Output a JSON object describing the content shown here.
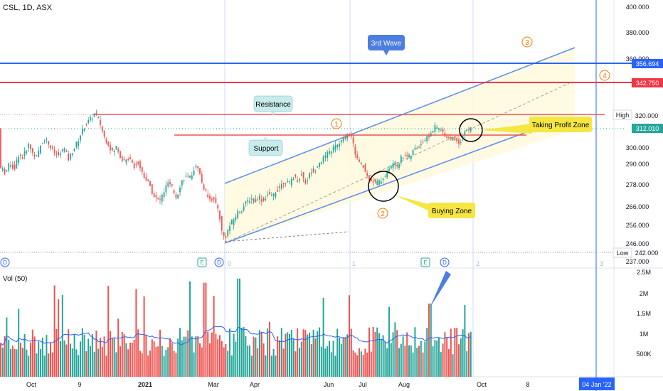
{
  "symbol_title": "CSL, 1D, ASX",
  "colors": {
    "up": "#26a69a",
    "down": "#ef5350",
    "ema": "#2962ff",
    "res_line": "#ef5350",
    "channel": "#5b8def",
    "h_blue": "#2962ff",
    "h_red": "#f23645",
    "wave": "#f57c00",
    "callout": "#f5e642",
    "wave_box": "#4c7de0",
    "teal_box": "#c8ecec"
  },
  "price_axis": {
    "ticks": [
      "400.000",
      "380.000",
      "360.000",
      "320.000",
      "300.000",
      "290.000",
      "278.000",
      "266.000",
      "256.000",
      "246.000",
      "237.000"
    ],
    "badges": [
      {
        "label": "356.694",
        "color": "#2962ff"
      },
      {
        "label": "342.750",
        "color": "#f23645"
      },
      {
        "label": "312.010",
        "color": "#26a69a"
      }
    ],
    "high": {
      "label": "High",
      "value": "320.420"
    },
    "low": {
      "label": "Low",
      "value": "242.000"
    }
  },
  "volume": {
    "label": "Vol (50)",
    "ticks": [
      "2.5M",
      "2M",
      "1.5M",
      "1M",
      "500K"
    ]
  },
  "time_axis": {
    "labels": [
      "Oct",
      "9",
      "2021",
      "Mar",
      "Apr",
      "Jun",
      "Jul",
      "Aug",
      "Oct",
      "8"
    ],
    "date_badge": "04 Jan '22"
  },
  "annotations": {
    "resistance": "Resistance",
    "support": "Support",
    "third_wave": "3rd Wave",
    "taking_profit": "Taking Profit Zone",
    "buying_zone": "Buying Zone",
    "wave_numbers": [
      "1",
      "2",
      "3",
      "4"
    ],
    "fib_labels": [
      "0",
      "1",
      "2",
      "3"
    ],
    "markers": [
      "D",
      "E",
      "D",
      "E",
      "D"
    ]
  },
  "chart_data": {
    "type": "candlestick",
    "title": "CSL, 1D, ASX",
    "ohlc_path": [
      [
        0,
        288
      ],
      [
        8,
        285
      ],
      [
        14,
        291
      ],
      [
        20,
        287
      ],
      [
        26,
        296
      ],
      [
        32,
        294
      ],
      [
        40,
        302
      ],
      [
        46,
        297
      ],
      [
        52,
        294
      ],
      [
        58,
        303
      ],
      [
        64,
        306
      ],
      [
        70,
        301
      ],
      [
        76,
        297
      ],
      [
        82,
        295
      ],
      [
        90,
        300
      ],
      [
        96,
        293
      ],
      [
        102,
        298
      ],
      [
        108,
        303
      ],
      [
        114,
        309
      ],
      [
        120,
        314
      ],
      [
        128,
        318
      ],
      [
        134,
        321
      ],
      [
        140,
        316
      ],
      [
        146,
        307
      ],
      [
        152,
        303
      ],
      [
        158,
        297
      ],
      [
        164,
        301
      ],
      [
        170,
        294
      ],
      [
        176,
        291
      ],
      [
        182,
        295
      ],
      [
        188,
        289
      ],
      [
        194,
        291
      ],
      [
        200,
        285
      ],
      [
        206,
        281
      ],
      [
        212,
        276
      ],
      [
        218,
        271
      ],
      [
        224,
        269
      ],
      [
        230,
        274
      ],
      [
        236,
        279
      ],
      [
        242,
        276
      ],
      [
        248,
        271
      ],
      [
        254,
        279
      ],
      [
        260,
        283
      ],
      [
        266,
        281
      ],
      [
        272,
        287
      ],
      [
        278,
        289
      ],
      [
        284,
        279
      ],
      [
        290,
        273
      ],
      [
        296,
        271
      ],
      [
        302,
        269
      ],
      [
        308,
        263
      ],
      [
        312,
        252
      ],
      [
        316,
        249
      ],
      [
        322,
        255
      ],
      [
        328,
        259
      ],
      [
        334,
        263
      ],
      [
        340,
        265
      ],
      [
        346,
        268
      ],
      [
        352,
        271
      ],
      [
        358,
        269
      ],
      [
        364,
        272
      ],
      [
        370,
        269
      ],
      [
        376,
        273
      ],
      [
        382,
        271
      ],
      [
        388,
        275
      ],
      [
        394,
        277
      ],
      [
        400,
        281
      ],
      [
        406,
        278
      ],
      [
        412,
        283
      ],
      [
        418,
        281
      ],
      [
        424,
        284
      ],
      [
        430,
        279
      ],
      [
        436,
        285
      ],
      [
        442,
        287
      ],
      [
        448,
        291
      ],
      [
        454,
        293
      ],
      [
        460,
        296
      ],
      [
        466,
        299
      ],
      [
        472,
        301
      ],
      [
        478,
        303
      ],
      [
        484,
        306
      ],
      [
        490,
        309
      ],
      [
        494,
        306
      ],
      [
        498,
        299
      ],
      [
        504,
        291
      ],
      [
        510,
        289
      ],
      [
        516,
        283
      ],
      [
        522,
        281
      ],
      [
        528,
        279
      ],
      [
        534,
        280
      ],
      [
        540,
        283
      ],
      [
        546,
        286
      ],
      [
        552,
        291
      ],
      [
        558,
        289
      ],
      [
        564,
        294
      ],
      [
        570,
        296
      ],
      [
        576,
        294
      ],
      [
        582,
        299
      ],
      [
        588,
        301
      ],
      [
        594,
        304
      ],
      [
        600,
        306
      ],
      [
        606,
        309
      ],
      [
        612,
        313
      ],
      [
        618,
        311
      ],
      [
        624,
        309
      ],
      [
        630,
        306
      ],
      [
        636,
        306
      ],
      [
        640,
        305
      ],
      [
        646,
        303
      ],
      [
        652,
        309
      ],
      [
        658,
        311
      ],
      [
        664,
        312
      ]
    ],
    "volume_series": {
      "name": "Vol (50)",
      "ylim": [
        0,
        2500000
      ]
    },
    "levels": [
      {
        "name": "High",
        "y": 320.42
      },
      {
        "name": "Low",
        "y": 242.0
      },
      {
        "y": 356.694
      },
      {
        "y": 342.75
      },
      {
        "y": 312.01
      }
    ],
    "ylim": [
      237,
      400
    ],
    "xlabel": "",
    "ylabel": ""
  }
}
